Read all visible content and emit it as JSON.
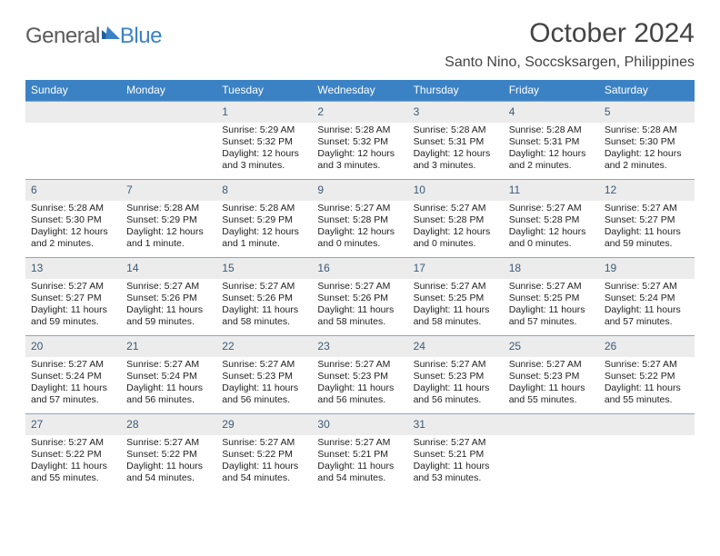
{
  "logo": {
    "general": "General",
    "blue": "Blue"
  },
  "title": "October 2024",
  "location": "Santo Nino, Soccsksargen, Philippines",
  "colors": {
    "header_bg": "#3b82c4",
    "header_text": "#ffffff",
    "daynum_bg": "#ececec",
    "daynum_color": "#3a5a78",
    "border": "#8aa8c0",
    "body_text": "#222222",
    "page_bg": "#ffffff",
    "logo_gray": "#5a5a5a",
    "logo_blue": "#3b82c4"
  },
  "typography": {
    "title_fontsize": 30,
    "location_fontsize": 16,
    "dayheader_fontsize": 12,
    "daynum_fontsize": 12,
    "body_fontsize": 10.5
  },
  "layout": {
    "columns": 7,
    "rows": 5,
    "cell_min_height": 86
  },
  "day_names": [
    "Sunday",
    "Monday",
    "Tuesday",
    "Wednesday",
    "Thursday",
    "Friday",
    "Saturday"
  ],
  "weeks": [
    [
      {
        "n": "",
        "sr": "",
        "ss": "",
        "dl": ""
      },
      {
        "n": "",
        "sr": "",
        "ss": "",
        "dl": ""
      },
      {
        "n": "1",
        "sr": "Sunrise: 5:29 AM",
        "ss": "Sunset: 5:32 PM",
        "dl": "Daylight: 12 hours and 3 minutes."
      },
      {
        "n": "2",
        "sr": "Sunrise: 5:28 AM",
        "ss": "Sunset: 5:32 PM",
        "dl": "Daylight: 12 hours and 3 minutes."
      },
      {
        "n": "3",
        "sr": "Sunrise: 5:28 AM",
        "ss": "Sunset: 5:31 PM",
        "dl": "Daylight: 12 hours and 3 minutes."
      },
      {
        "n": "4",
        "sr": "Sunrise: 5:28 AM",
        "ss": "Sunset: 5:31 PM",
        "dl": "Daylight: 12 hours and 2 minutes."
      },
      {
        "n": "5",
        "sr": "Sunrise: 5:28 AM",
        "ss": "Sunset: 5:30 PM",
        "dl": "Daylight: 12 hours and 2 minutes."
      }
    ],
    [
      {
        "n": "6",
        "sr": "Sunrise: 5:28 AM",
        "ss": "Sunset: 5:30 PM",
        "dl": "Daylight: 12 hours and 2 minutes."
      },
      {
        "n": "7",
        "sr": "Sunrise: 5:28 AM",
        "ss": "Sunset: 5:29 PM",
        "dl": "Daylight: 12 hours and 1 minute."
      },
      {
        "n": "8",
        "sr": "Sunrise: 5:28 AM",
        "ss": "Sunset: 5:29 PM",
        "dl": "Daylight: 12 hours and 1 minute."
      },
      {
        "n": "9",
        "sr": "Sunrise: 5:27 AM",
        "ss": "Sunset: 5:28 PM",
        "dl": "Daylight: 12 hours and 0 minutes."
      },
      {
        "n": "10",
        "sr": "Sunrise: 5:27 AM",
        "ss": "Sunset: 5:28 PM",
        "dl": "Daylight: 12 hours and 0 minutes."
      },
      {
        "n": "11",
        "sr": "Sunrise: 5:27 AM",
        "ss": "Sunset: 5:28 PM",
        "dl": "Daylight: 12 hours and 0 minutes."
      },
      {
        "n": "12",
        "sr": "Sunrise: 5:27 AM",
        "ss": "Sunset: 5:27 PM",
        "dl": "Daylight: 11 hours and 59 minutes."
      }
    ],
    [
      {
        "n": "13",
        "sr": "Sunrise: 5:27 AM",
        "ss": "Sunset: 5:27 PM",
        "dl": "Daylight: 11 hours and 59 minutes."
      },
      {
        "n": "14",
        "sr": "Sunrise: 5:27 AM",
        "ss": "Sunset: 5:26 PM",
        "dl": "Daylight: 11 hours and 59 minutes."
      },
      {
        "n": "15",
        "sr": "Sunrise: 5:27 AM",
        "ss": "Sunset: 5:26 PM",
        "dl": "Daylight: 11 hours and 58 minutes."
      },
      {
        "n": "16",
        "sr": "Sunrise: 5:27 AM",
        "ss": "Sunset: 5:26 PM",
        "dl": "Daylight: 11 hours and 58 minutes."
      },
      {
        "n": "17",
        "sr": "Sunrise: 5:27 AM",
        "ss": "Sunset: 5:25 PM",
        "dl": "Daylight: 11 hours and 58 minutes."
      },
      {
        "n": "18",
        "sr": "Sunrise: 5:27 AM",
        "ss": "Sunset: 5:25 PM",
        "dl": "Daylight: 11 hours and 57 minutes."
      },
      {
        "n": "19",
        "sr": "Sunrise: 5:27 AM",
        "ss": "Sunset: 5:24 PM",
        "dl": "Daylight: 11 hours and 57 minutes."
      }
    ],
    [
      {
        "n": "20",
        "sr": "Sunrise: 5:27 AM",
        "ss": "Sunset: 5:24 PM",
        "dl": "Daylight: 11 hours and 57 minutes."
      },
      {
        "n": "21",
        "sr": "Sunrise: 5:27 AM",
        "ss": "Sunset: 5:24 PM",
        "dl": "Daylight: 11 hours and 56 minutes."
      },
      {
        "n": "22",
        "sr": "Sunrise: 5:27 AM",
        "ss": "Sunset: 5:23 PM",
        "dl": "Daylight: 11 hours and 56 minutes."
      },
      {
        "n": "23",
        "sr": "Sunrise: 5:27 AM",
        "ss": "Sunset: 5:23 PM",
        "dl": "Daylight: 11 hours and 56 minutes."
      },
      {
        "n": "24",
        "sr": "Sunrise: 5:27 AM",
        "ss": "Sunset: 5:23 PM",
        "dl": "Daylight: 11 hours and 56 minutes."
      },
      {
        "n": "25",
        "sr": "Sunrise: 5:27 AM",
        "ss": "Sunset: 5:23 PM",
        "dl": "Daylight: 11 hours and 55 minutes."
      },
      {
        "n": "26",
        "sr": "Sunrise: 5:27 AM",
        "ss": "Sunset: 5:22 PM",
        "dl": "Daylight: 11 hours and 55 minutes."
      }
    ],
    [
      {
        "n": "27",
        "sr": "Sunrise: 5:27 AM",
        "ss": "Sunset: 5:22 PM",
        "dl": "Daylight: 11 hours and 55 minutes."
      },
      {
        "n": "28",
        "sr": "Sunrise: 5:27 AM",
        "ss": "Sunset: 5:22 PM",
        "dl": "Daylight: 11 hours and 54 minutes."
      },
      {
        "n": "29",
        "sr": "Sunrise: 5:27 AM",
        "ss": "Sunset: 5:22 PM",
        "dl": "Daylight: 11 hours and 54 minutes."
      },
      {
        "n": "30",
        "sr": "Sunrise: 5:27 AM",
        "ss": "Sunset: 5:21 PM",
        "dl": "Daylight: 11 hours and 54 minutes."
      },
      {
        "n": "31",
        "sr": "Sunrise: 5:27 AM",
        "ss": "Sunset: 5:21 PM",
        "dl": "Daylight: 11 hours and 53 minutes."
      },
      {
        "n": "",
        "sr": "",
        "ss": "",
        "dl": ""
      },
      {
        "n": "",
        "sr": "",
        "ss": "",
        "dl": ""
      }
    ]
  ]
}
